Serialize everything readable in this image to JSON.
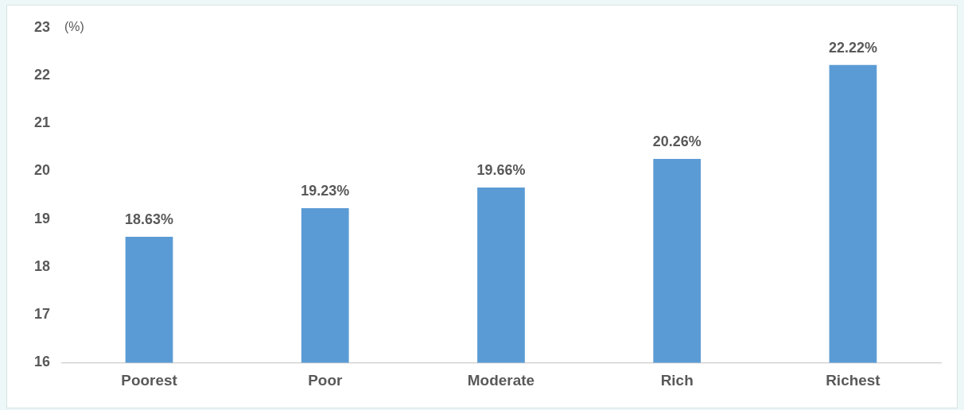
{
  "chart_data": {
    "type": "bar",
    "ylabel": "(%)",
    "categories": [
      "Poorest",
      "Poor",
      "Moderate",
      "Rich",
      "Richest"
    ],
    "values": [
      18.63,
      19.23,
      19.66,
      20.26,
      22.22
    ],
    "value_labels": [
      "18.63%",
      "19.23%",
      "19.66%",
      "20.26%",
      "22.22%"
    ],
    "color": "#5b9bd5",
    "ylim": [
      16,
      23
    ],
    "yticks": [
      16,
      17,
      18,
      19,
      20,
      21,
      22,
      23
    ],
    "grid": false,
    "legend": false
  }
}
